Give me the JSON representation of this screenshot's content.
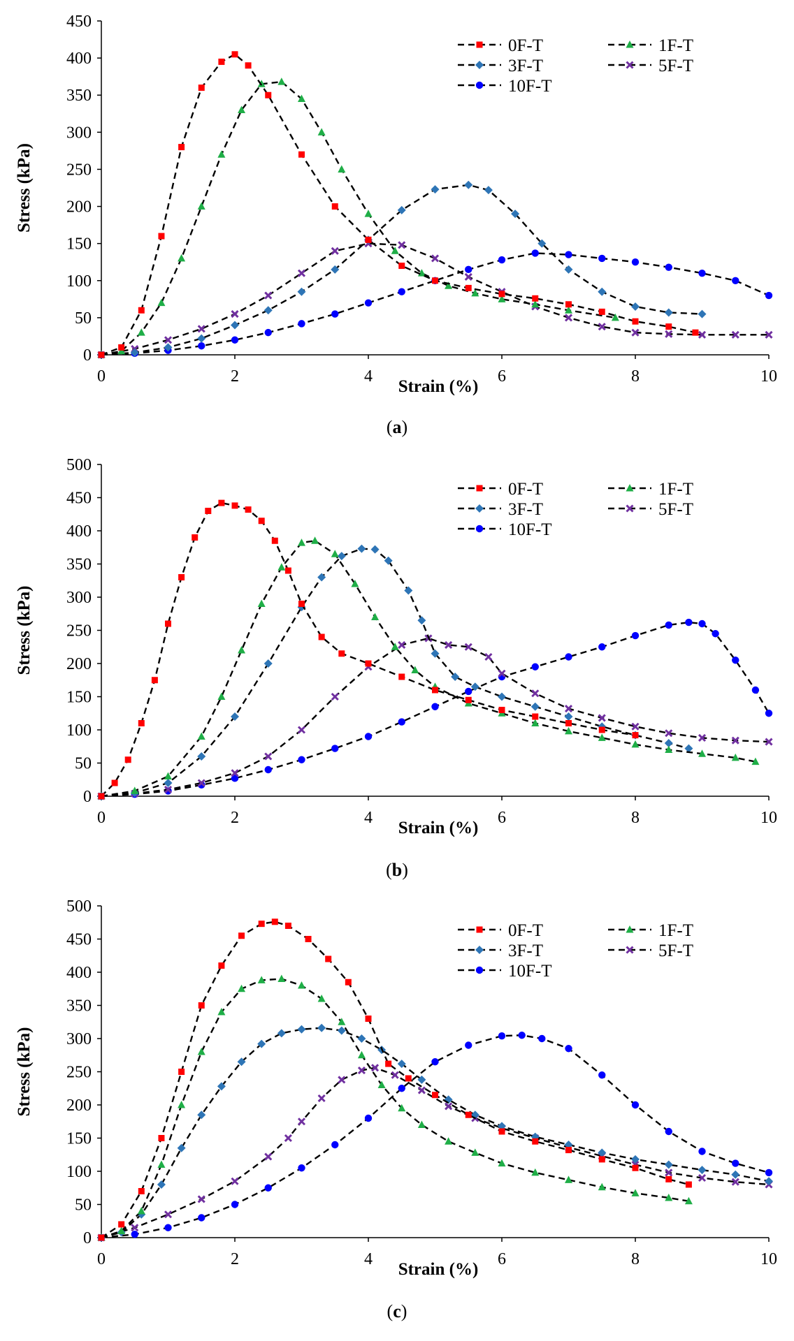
{
  "figure": {
    "captions": [
      "(a)",
      "(b)",
      "(c)"
    ]
  },
  "chart_data": [
    {
      "type": "line",
      "panel": "(a)",
      "xlabel": "Strain (%)",
      "ylabel": "Stress (kPa)",
      "xlim": [
        0,
        10
      ],
      "ylim": [
        0,
        450
      ],
      "xticks": [
        0,
        2,
        4,
        6,
        8,
        10
      ],
      "yticks": [
        0,
        50,
        100,
        150,
        200,
        250,
        300,
        350,
        400,
        450
      ],
      "grid": false,
      "legend": "top-right",
      "series": [
        {
          "name": "0F-T",
          "color": "#ff0000",
          "marker": "square",
          "x": [
            0,
            0.3,
            0.6,
            0.9,
            1.2,
            1.5,
            1.8,
            2.0,
            2.2,
            2.5,
            3.0,
            3.5,
            4.0,
            4.5,
            5.0,
            5.5,
            6.0,
            6.5,
            7.0,
            7.5,
            8.0,
            8.5,
            8.9
          ],
          "y": [
            0,
            10,
            60,
            160,
            280,
            360,
            395,
            405,
            390,
            350,
            270,
            200,
            155,
            120,
            100,
            90,
            82,
            76,
            68,
            58,
            45,
            38,
            30
          ]
        },
        {
          "name": "1F-T",
          "color": "#1fae47",
          "marker": "triangle",
          "x": [
            0,
            0.3,
            0.6,
            0.9,
            1.2,
            1.5,
            1.8,
            2.1,
            2.4,
            2.7,
            3.0,
            3.3,
            3.6,
            4.0,
            4.4,
            4.8,
            5.2,
            5.6,
            6.0,
            6.5,
            7.0,
            7.7
          ],
          "y": [
            0,
            5,
            30,
            70,
            130,
            200,
            270,
            330,
            365,
            368,
            345,
            300,
            250,
            190,
            140,
            110,
            93,
            83,
            75,
            68,
            60,
            50
          ]
        },
        {
          "name": "3F-T",
          "color": "#2e75b6",
          "marker": "diamond",
          "x": [
            0,
            0.5,
            1.0,
            1.5,
            2.0,
            2.5,
            3.0,
            3.5,
            4.0,
            4.5,
            5.0,
            5.5,
            5.8,
            6.2,
            6.6,
            7.0,
            7.5,
            8.0,
            8.5,
            9.0
          ],
          "y": [
            0,
            3,
            10,
            22,
            40,
            60,
            85,
            115,
            155,
            195,
            223,
            229,
            222,
            190,
            150,
            115,
            85,
            65,
            57,
            55
          ]
        },
        {
          "name": "5F-T",
          "color": "#7030a0",
          "marker": "x",
          "x": [
            0,
            0.5,
            1.0,
            1.5,
            2.0,
            2.5,
            3.0,
            3.5,
            4.0,
            4.5,
            5.0,
            5.5,
            6.0,
            6.5,
            7.0,
            7.5,
            8.0,
            8.5,
            9.0,
            9.5,
            10.0
          ],
          "y": [
            0,
            8,
            20,
            35,
            55,
            80,
            110,
            140,
            150,
            148,
            130,
            105,
            85,
            65,
            50,
            38,
            30,
            28,
            27,
            27,
            27
          ]
        },
        {
          "name": "10F-T",
          "color": "#0000ff",
          "marker": "circle",
          "x": [
            0,
            0.5,
            1.0,
            1.5,
            2.0,
            2.5,
            3.0,
            3.5,
            4.0,
            4.5,
            5.0,
            5.5,
            6.0,
            6.5,
            7.0,
            7.5,
            8.0,
            8.5,
            9.0,
            9.5,
            10.0
          ],
          "y": [
            0,
            2,
            6,
            12,
            20,
            30,
            42,
            55,
            70,
            85,
            100,
            115,
            128,
            137,
            135,
            130,
            125,
            118,
            110,
            100,
            80
          ]
        }
      ]
    },
    {
      "type": "line",
      "panel": "(b)",
      "xlabel": "Strain (%)",
      "ylabel": "Stress (kPa)",
      "xlim": [
        0,
        10
      ],
      "ylim": [
        0,
        500
      ],
      "xticks": [
        0,
        2,
        4,
        6,
        8,
        10
      ],
      "yticks": [
        0,
        50,
        100,
        150,
        200,
        250,
        300,
        350,
        400,
        450,
        500
      ],
      "grid": false,
      "legend": "top-right",
      "series": [
        {
          "name": "0F-T",
          "color": "#ff0000",
          "marker": "square",
          "x": [
            0,
            0.2,
            0.4,
            0.6,
            0.8,
            1.0,
            1.2,
            1.4,
            1.6,
            1.8,
            2.0,
            2.2,
            2.4,
            2.6,
            2.8,
            3.0,
            3.3,
            3.6,
            4.0,
            4.5,
            5.0,
            5.5,
            6.0,
            6.5,
            7.0,
            7.5,
            8.0
          ],
          "y": [
            0,
            20,
            55,
            110,
            175,
            260,
            330,
            390,
            430,
            442,
            438,
            432,
            415,
            385,
            340,
            290,
            240,
            215,
            200,
            180,
            160,
            145,
            130,
            120,
            110,
            100,
            92
          ]
        },
        {
          "name": "1F-T",
          "color": "#1fae47",
          "marker": "triangle",
          "x": [
            0,
            0.5,
            1.0,
            1.5,
            1.8,
            2.1,
            2.4,
            2.7,
            3.0,
            3.2,
            3.5,
            3.8,
            4.1,
            4.4,
            4.7,
            5.0,
            5.5,
            6.0,
            6.5,
            7.0,
            7.5,
            8.0,
            8.5,
            9.0,
            9.5,
            9.8
          ],
          "y": [
            0,
            8,
            30,
            90,
            150,
            220,
            290,
            345,
            382,
            385,
            365,
            320,
            270,
            225,
            190,
            165,
            140,
            125,
            110,
            98,
            88,
            78,
            70,
            64,
            58,
            52
          ]
        },
        {
          "name": "3F-T",
          "color": "#2e75b6",
          "marker": "diamond",
          "x": [
            0,
            0.5,
            1.0,
            1.5,
            2.0,
            2.5,
            3.0,
            3.3,
            3.6,
            3.9,
            4.1,
            4.3,
            4.6,
            4.8,
            5.0,
            5.3,
            5.6,
            6.0,
            6.5,
            7.0,
            7.5,
            8.0,
            8.5,
            8.8
          ],
          "y": [
            0,
            5,
            20,
            60,
            120,
            200,
            285,
            330,
            362,
            373,
            372,
            355,
            310,
            265,
            215,
            180,
            165,
            150,
            135,
            120,
            105,
            92,
            80,
            72
          ]
        },
        {
          "name": "5F-T",
          "color": "#7030a0",
          "marker": "x",
          "x": [
            0,
            0.5,
            1.0,
            1.5,
            2.0,
            2.5,
            3.0,
            3.5,
            4.0,
            4.5,
            4.9,
            5.2,
            5.5,
            5.8,
            6.0,
            6.5,
            7.0,
            7.5,
            8.0,
            8.5,
            9.0,
            9.5,
            10.0
          ],
          "y": [
            0,
            4,
            10,
            20,
            35,
            60,
            100,
            150,
            195,
            228,
            238,
            228,
            225,
            210,
            185,
            155,
            132,
            118,
            105,
            95,
            88,
            84,
            82
          ]
        },
        {
          "name": "10F-T",
          "color": "#0000ff",
          "marker": "circle",
          "x": [
            0,
            0.5,
            1.0,
            1.5,
            2.0,
            2.5,
            3.0,
            3.5,
            4.0,
            4.5,
            5.0,
            5.5,
            6.0,
            6.5,
            7.0,
            7.5,
            8.0,
            8.5,
            8.8,
            9.0,
            9.2,
            9.5,
            9.8,
            10.0
          ],
          "y": [
            0,
            3,
            8,
            17,
            27,
            40,
            55,
            72,
            90,
            112,
            135,
            158,
            180,
            195,
            210,
            225,
            242,
            258,
            262,
            260,
            245,
            205,
            160,
            125
          ]
        }
      ]
    },
    {
      "type": "line",
      "panel": "(c)",
      "xlabel": "Strain (%)",
      "ylabel": "Stress (kPa)",
      "xlim": [
        0,
        10
      ],
      "ylim": [
        0,
        500
      ],
      "xticks": [
        0,
        2,
        4,
        6,
        8,
        10
      ],
      "yticks": [
        0,
        50,
        100,
        150,
        200,
        250,
        300,
        350,
        400,
        450,
        500
      ],
      "grid": false,
      "legend": "top-right",
      "series": [
        {
          "name": "0F-T",
          "color": "#ff0000",
          "marker": "square",
          "x": [
            0,
            0.3,
            0.6,
            0.9,
            1.2,
            1.5,
            1.8,
            2.1,
            2.4,
            2.6,
            2.8,
            3.1,
            3.4,
            3.7,
            4.0,
            4.3,
            4.6,
            5.0,
            5.5,
            6.0,
            6.5,
            7.0,
            7.5,
            8.0,
            8.5,
            8.8
          ],
          "y": [
            0,
            20,
            70,
            150,
            250,
            350,
            410,
            455,
            473,
            476,
            470,
            450,
            420,
            385,
            330,
            262,
            240,
            215,
            185,
            160,
            145,
            132,
            118,
            105,
            88,
            80
          ]
        },
        {
          "name": "1F-T",
          "color": "#1fae47",
          "marker": "triangle",
          "x": [
            0,
            0.3,
            0.6,
            0.9,
            1.2,
            1.5,
            1.8,
            2.1,
            2.4,
            2.7,
            3.0,
            3.3,
            3.6,
            3.9,
            4.2,
            4.5,
            4.8,
            5.2,
            5.6,
            6.0,
            6.5,
            7.0,
            7.5,
            8.0,
            8.5,
            8.8
          ],
          "y": [
            0,
            10,
            40,
            110,
            200,
            280,
            340,
            375,
            388,
            390,
            380,
            360,
            325,
            275,
            230,
            195,
            170,
            145,
            128,
            112,
            98,
            87,
            76,
            67,
            60,
            55
          ]
        },
        {
          "name": "3F-T",
          "color": "#2e75b6",
          "marker": "diamond",
          "x": [
            0,
            0.3,
            0.6,
            0.9,
            1.2,
            1.5,
            1.8,
            2.1,
            2.4,
            2.7,
            3.0,
            3.3,
            3.6,
            3.9,
            4.2,
            4.5,
            4.8,
            5.2,
            5.6,
            6.0,
            6.5,
            7.0,
            7.5,
            8.0,
            8.5,
            9.0,
            9.5,
            10.0
          ],
          "y": [
            0,
            8,
            35,
            80,
            135,
            185,
            228,
            265,
            292,
            308,
            314,
            316,
            312,
            300,
            283,
            262,
            238,
            208,
            185,
            168,
            152,
            140,
            128,
            118,
            110,
            102,
            95,
            85
          ]
        },
        {
          "name": "5F-T",
          "color": "#7030a0",
          "marker": "x",
          "x": [
            0,
            0.5,
            1.0,
            1.5,
            2.0,
            2.5,
            2.8,
            3.0,
            3.3,
            3.6,
            3.9,
            4.1,
            4.4,
            4.8,
            5.2,
            5.6,
            6.0,
            6.5,
            7.0,
            7.5,
            8.0,
            8.5,
            9.0,
            9.5,
            10.0
          ],
          "y": [
            0,
            15,
            35,
            58,
            85,
            122,
            150,
            175,
            210,
            238,
            252,
            256,
            245,
            222,
            198,
            180,
            165,
            150,
            136,
            123,
            110,
            98,
            90,
            84,
            80
          ]
        },
        {
          "name": "10F-T",
          "color": "#0000ff",
          "marker": "circle",
          "x": [
            0,
            0.5,
            1.0,
            1.5,
            2.0,
            2.5,
            3.0,
            3.5,
            4.0,
            4.5,
            5.0,
            5.5,
            6.0,
            6.3,
            6.6,
            7.0,
            7.5,
            8.0,
            8.5,
            9.0,
            9.5,
            10.0
          ],
          "y": [
            0,
            5,
            15,
            30,
            50,
            75,
            105,
            140,
            180,
            225,
            265,
            290,
            304,
            305,
            300,
            285,
            245,
            200,
            160,
            130,
            112,
            98
          ]
        }
      ]
    }
  ]
}
